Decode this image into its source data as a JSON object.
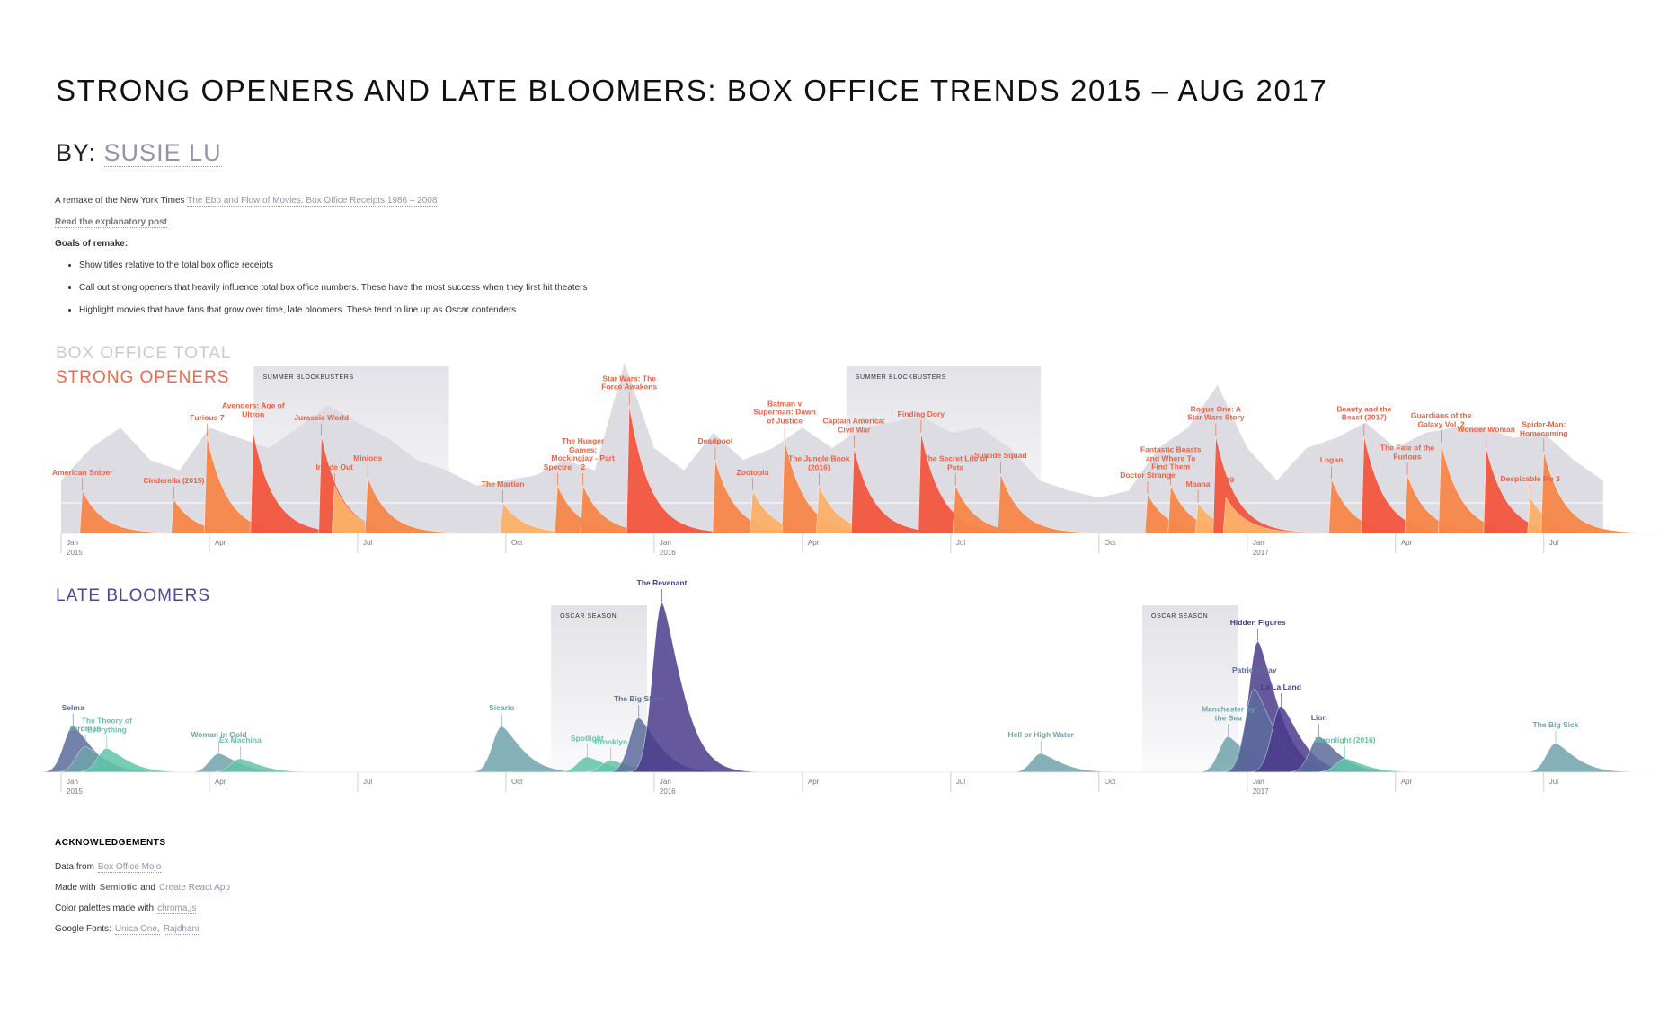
{
  "header": {
    "title": "STRONG OPENERS AND LATE BLOOMERS: BOX OFFICE TRENDS 2015 – AUG 2017",
    "by": "BY:",
    "author": "SUSIE LU"
  },
  "intro": {
    "remake_prefix": "A remake of the New York Times",
    "remake_link": "The Ebb and Flow of Movies: Box Office Receipts 1986 – 2008",
    "post_link": "Read the explanatory post",
    "goals_heading": "Goals of remake:",
    "goals": [
      "Show titles relative to the total box office receipts",
      "Call out strong openers that heavily influence total box office numbers. These have the most success when they first hit theaters",
      "Highlight movies that have fans that grow over time, late bloomers. These tend to line up as Oscar contenders"
    ]
  },
  "chart_data": [
    {
      "type": "spike",
      "legend_total": "BOX OFFICE TOTAL",
      "title": "STRONG OPENERS",
      "title_color": "#f2674a",
      "total_color": "#dcdce2",
      "label_color": "#f06040",
      "xlim": [
        2015,
        2017.62
      ],
      "ylim": [
        0,
        100
      ],
      "xticks": [
        {
          "value": 2015,
          "label": "Jan",
          "year": "2015"
        },
        {
          "value": 2015.25,
          "label": "Apr"
        },
        {
          "value": 2015.5,
          "label": "Jul"
        },
        {
          "value": 2015.75,
          "label": "Oct"
        },
        {
          "value": 2016,
          "label": "Jan",
          "year": "2016"
        },
        {
          "value": 2016.25,
          "label": "Apr"
        },
        {
          "value": 2016.5,
          "label": "Jul"
        },
        {
          "value": 2016.75,
          "label": "Oct"
        },
        {
          "value": 2017,
          "label": "Jan",
          "year": "2017"
        },
        {
          "value": 2017.25,
          "label": "Apr"
        },
        {
          "value": 2017.5,
          "label": "Jul"
        }
      ],
      "highlights": [
        {
          "label": "SUMMER BLOCKBUSTERS",
          "start": 2015.325,
          "end": 2015.654
        },
        {
          "label": "SUMMER BLOCKBUSTERS",
          "start": 2016.324,
          "end": 2016.652
        }
      ],
      "total": {
        "x": [
          2015.0,
          2015.05,
          2015.1,
          2015.15,
          2015.2,
          2015.25,
          2015.3,
          2015.35,
          2015.4,
          2015.45,
          2015.5,
          2015.55,
          2015.6,
          2015.65,
          2015.7,
          2015.75,
          2015.8,
          2015.85,
          2015.9,
          2015.95,
          2016.0,
          2016.05,
          2016.1,
          2016.15,
          2016.2,
          2016.25,
          2016.3,
          2016.35,
          2016.4,
          2016.45,
          2016.5,
          2016.55,
          2016.6,
          2016.65,
          2016.7,
          2016.75,
          2016.8,
          2016.85,
          2016.9,
          2016.95,
          2017.0,
          2017.05,
          2017.1,
          2017.15,
          2017.2,
          2017.25,
          2017.3,
          2017.35,
          2017.4,
          2017.45,
          2017.5,
          2017.55,
          2017.6
        ],
        "values": [
          31,
          50,
          62,
          43,
          37,
          62,
          56,
          50,
          62,
          75,
          65,
          56,
          43,
          37,
          28,
          31,
          34,
          43,
          37,
          100,
          50,
          37,
          59,
          43,
          50,
          62,
          50,
          62,
          65,
          69,
          59,
          62,
          50,
          31,
          25,
          21,
          25,
          50,
          62,
          87,
          50,
          31,
          50,
          56,
          65,
          50,
          59,
          62,
          62,
          56,
          59,
          43,
          31
        ]
      },
      "movies": [
        {
          "name": "American Sniper",
          "x": 2015.036,
          "peak": 25,
          "color": "#f7864a"
        },
        {
          "name": "Cinderella (2015)",
          "x": 2015.19,
          "peak": 20,
          "color": "#f7864a"
        },
        {
          "name": "Furious 7",
          "x": 2015.246,
          "peak": 57,
          "color": "#f7864a"
        },
        {
          "name": "Avengers: Age of Ultron",
          "x": 2015.324,
          "peak": 59,
          "color": "#f2553f"
        },
        {
          "name": "Jurassic World",
          "x": 2015.439,
          "peak": 57,
          "color": "#f2553f"
        },
        {
          "name": "Inside Out",
          "x": 2015.461,
          "peak": 28,
          "color": "#fbb067"
        },
        {
          "name": "Minions",
          "x": 2015.517,
          "peak": 33,
          "color": "#f7864a"
        },
        {
          "name": "The Martian",
          "x": 2015.745,
          "peak": 18,
          "color": "#fbb067"
        },
        {
          "name": "Spectre",
          "x": 2015.837,
          "peak": 28,
          "color": "#f7864a"
        },
        {
          "name": "The Hunger Games: Mockingjay - Part 2",
          "x": 2015.88,
          "peak": 28,
          "color": "#f7864a"
        },
        {
          "name": "Star Wars: The Force Awakens",
          "x": 2015.958,
          "peak": 75,
          "color": "#f2553f"
        },
        {
          "name": "Deadpool",
          "x": 2016.103,
          "peak": 43,
          "color": "#f7864a"
        },
        {
          "name": "Zootopia",
          "x": 2016.166,
          "peak": 25,
          "color": "#fbb067"
        },
        {
          "name": "Batman v Superman: Dawn of Justice",
          "x": 2016.22,
          "peak": 55,
          "color": "#f7864a"
        },
        {
          "name": "The Jungle Book (2016)",
          "x": 2016.278,
          "peak": 28,
          "color": "#fbb067"
        },
        {
          "name": "Captain America: Civil War",
          "x": 2016.337,
          "peak": 50,
          "color": "#f2553f"
        },
        {
          "name": "Finding Dory",
          "x": 2016.45,
          "peak": 59,
          "color": "#f2553f"
        },
        {
          "name": "The Secret Life of Pets",
          "x": 2016.508,
          "peak": 28,
          "color": "#f7864a"
        },
        {
          "name": "Suicide Squad",
          "x": 2016.584,
          "peak": 35,
          "color": "#f7864a"
        },
        {
          "name": "Doctor Strange",
          "x": 2016.832,
          "peak": 23,
          "color": "#f7864a"
        },
        {
          "name": "Fantastic Beasts and Where To Find Them",
          "x": 2016.871,
          "peak": 28,
          "color": "#f7864a"
        },
        {
          "name": "Moana",
          "x": 2016.917,
          "peak": 18,
          "color": "#fbb067"
        },
        {
          "name": "Rogue One: A Star Wars Story",
          "x": 2016.947,
          "peak": 57,
          "color": "#f2553f"
        },
        {
          "name": "Sing",
          "x": 2016.964,
          "peak": 21,
          "color": "#fbb067"
        },
        {
          "name": "Logan",
          "x": 2017.142,
          "peak": 32,
          "color": "#f7864a"
        },
        {
          "name": "Beauty and the Beast (2017)",
          "x": 2017.197,
          "peak": 57,
          "color": "#f2553f"
        },
        {
          "name": "The Fate of the Furious",
          "x": 2017.27,
          "peak": 34,
          "color": "#f7864a"
        },
        {
          "name": "Guardians of the Galaxy Vol. 2",
          "x": 2017.327,
          "peak": 53,
          "color": "#f7864a"
        },
        {
          "name": "Wonder Woman",
          "x": 2017.403,
          "peak": 50,
          "color": "#f2553f"
        },
        {
          "name": "Despicable Me 3",
          "x": 2017.477,
          "peak": 21,
          "color": "#fbb067"
        },
        {
          "name": "Spider-Man: Homecoming",
          "x": 2017.5,
          "peak": 48,
          "color": "#f7864a"
        }
      ]
    },
    {
      "type": "wave",
      "title": "LATE BLOOMERS",
      "title_color": "#4a4890",
      "xlim": [
        2015,
        2017.62
      ],
      "ylim": [
        0,
        100
      ],
      "xticks": [
        {
          "value": 2015,
          "label": "Jan",
          "year": "2015"
        },
        {
          "value": 2015.25,
          "label": "Apr"
        },
        {
          "value": 2015.5,
          "label": "Jul"
        },
        {
          "value": 2015.75,
          "label": "Oct"
        },
        {
          "value": 2016,
          "label": "Jan",
          "year": "2016"
        },
        {
          "value": 2016.25,
          "label": "Apr"
        },
        {
          "value": 2016.5,
          "label": "Jul"
        },
        {
          "value": 2016.75,
          "label": "Oct"
        },
        {
          "value": 2017,
          "label": "Jan",
          "year": "2017"
        },
        {
          "value": 2017.25,
          "label": "Apr"
        },
        {
          "value": 2017.5,
          "label": "Jul"
        }
      ],
      "highlights": [
        {
          "label": "OSCAR SEASON",
          "start": 2015.826,
          "end": 2015.988
        },
        {
          "label": "OSCAR SEASON",
          "start": 2016.823,
          "end": 2016.985
        }
      ],
      "movies": [
        {
          "name": "Selma",
          "x": 2015.02,
          "peak": 27,
          "color": "#5c6c9c"
        },
        {
          "name": "Birdman",
          "x": 2015.041,
          "peak": 15,
          "color": "#6fa3aa"
        },
        {
          "name": "The Theory of Everything",
          "x": 2015.077,
          "peak": 14,
          "color": "#62c4a8"
        },
        {
          "name": "Woman in Gold",
          "x": 2015.266,
          "peak": 11,
          "color": "#6fa3aa"
        },
        {
          "name": "Ex Machina",
          "x": 2015.302,
          "peak": 8,
          "color": "#62c4a8"
        },
        {
          "name": "Sicario",
          "x": 2015.743,
          "peak": 27,
          "color": "#6fa3aa"
        },
        {
          "name": "Spotlight",
          "x": 2015.887,
          "peak": 9,
          "color": "#62c4a8"
        },
        {
          "name": "Brooklyn",
          "x": 2015.927,
          "peak": 7,
          "color": "#62c4a8"
        },
        {
          "name": "The Big Short",
          "x": 2015.974,
          "peak": 32,
          "color": "#5c6c9c"
        },
        {
          "name": "The Revenant",
          "x": 2016.013,
          "peak": 100,
          "color": "#4a3b8c"
        },
        {
          "name": "Hell or High Water",
          "x": 2016.652,
          "peak": 11,
          "color": "#6fa3aa"
        },
        {
          "name": "Manchester by the Sea",
          "x": 2016.968,
          "peak": 21,
          "color": "#6fa3aa"
        },
        {
          "name": "Hidden Figures",
          "x": 2017.018,
          "peak": 77,
          "color": "#4a3b8c"
        },
        {
          "name": "Patriots Day",
          "x": 2017.012,
          "peak": 49,
          "color": "#5c6c9c"
        },
        {
          "name": "La La Land",
          "x": 2017.057,
          "peak": 39,
          "color": "#4a3b8c"
        },
        {
          "name": "Lion",
          "x": 2017.121,
          "peak": 21,
          "color": "#5c6c9c"
        },
        {
          "name": "Moonlight (2016)",
          "x": 2017.165,
          "peak": 8,
          "color": "#62c4a8"
        },
        {
          "name": "The Big Sick",
          "x": 2017.52,
          "peak": 17,
          "color": "#6fa3aa"
        }
      ]
    }
  ],
  "acknowledgements": {
    "heading": "ACKNOWLEDGEMENTS",
    "lines": [
      [
        {
          "text": "Data from"
        },
        {
          "text": "Box Office Mojo",
          "link": true
        }
      ],
      [
        {
          "text": "Made with"
        },
        {
          "text": "Semiotic",
          "link": true,
          "bold": true
        },
        {
          "text": "and"
        },
        {
          "text": "Create React App",
          "link": true
        }
      ],
      [
        {
          "text": "Color palettes made with"
        },
        {
          "text": "chroma.js",
          "link": true
        }
      ],
      [
        {
          "text": "Google Fonts:"
        },
        {
          "text": "Unica One,",
          "link": true
        },
        {
          "text": "Rajdhani",
          "link": true
        }
      ]
    ]
  }
}
